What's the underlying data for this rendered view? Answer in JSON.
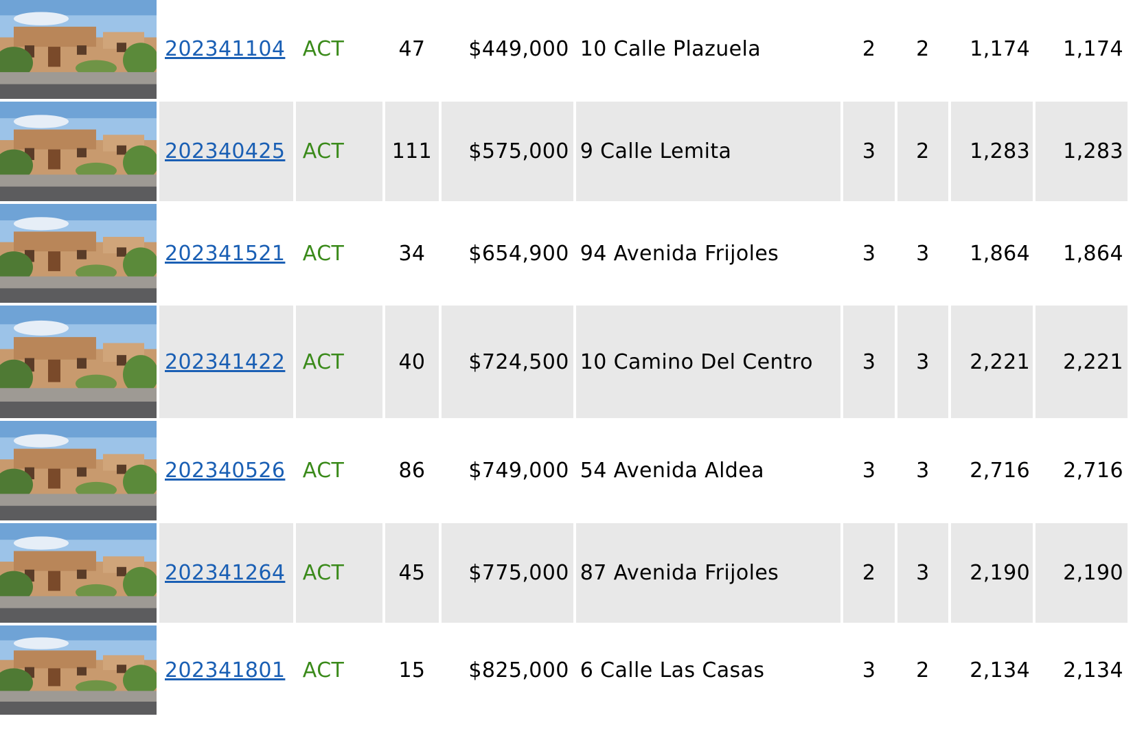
{
  "colors": {
    "row_alt": "#e8e8e8",
    "link": "#1a5fb4",
    "status_active": "#3a8a1a"
  },
  "listings": [
    {
      "mls": "202341104",
      "status": "ACT",
      "dom": "47",
      "price": "$449,000",
      "address": "10 Calle Plazuela",
      "beds": "2",
      "baths": "2",
      "sqft": "1,174",
      "sqft_total": "1,174",
      "photo": "adobe-house-photo"
    },
    {
      "mls": "202340425",
      "status": "ACT",
      "dom": "111",
      "price": "$575,000",
      "address": "9 Calle Lemita",
      "beds": "3",
      "baths": "2",
      "sqft": "1,283",
      "sqft_total": "1,283",
      "photo": "adobe-house-photo"
    },
    {
      "mls": "202341521",
      "status": "ACT",
      "dom": "34",
      "price": "$654,900",
      "address": "94 Avenida Frijoles",
      "beds": "3",
      "baths": "3",
      "sqft": "1,864",
      "sqft_total": "1,864",
      "photo": "adobe-house-photo"
    },
    {
      "mls": "202341422",
      "status": "ACT",
      "dom": "40",
      "price": "$724,500",
      "address": "10 Camino Del Centro",
      "beds": "3",
      "baths": "3",
      "sqft": "2,221",
      "sqft_total": "2,221",
      "photo": "adobe-house-photo"
    },
    {
      "mls": "202340526",
      "status": "ACT",
      "dom": "86",
      "price": "$749,000",
      "address": "54 Avenida Aldea",
      "beds": "3",
      "baths": "3",
      "sqft": "2,716",
      "sqft_total": "2,716",
      "photo": "adobe-house-photo"
    },
    {
      "mls": "202341264",
      "status": "ACT",
      "dom": "45",
      "price": "$775,000",
      "address": "87 Avenida Frijoles",
      "beds": "2",
      "baths": "3",
      "sqft": "2,190",
      "sqft_total": "2,190",
      "photo": "adobe-house-photo"
    },
    {
      "mls": "202341801",
      "status": "ACT",
      "dom": "15",
      "price": "$825,000",
      "address": "6 Calle Las Casas",
      "beds": "3",
      "baths": "2",
      "sqft": "2,134",
      "sqft_total": "2,134",
      "photo": "adobe-house-photo"
    }
  ]
}
